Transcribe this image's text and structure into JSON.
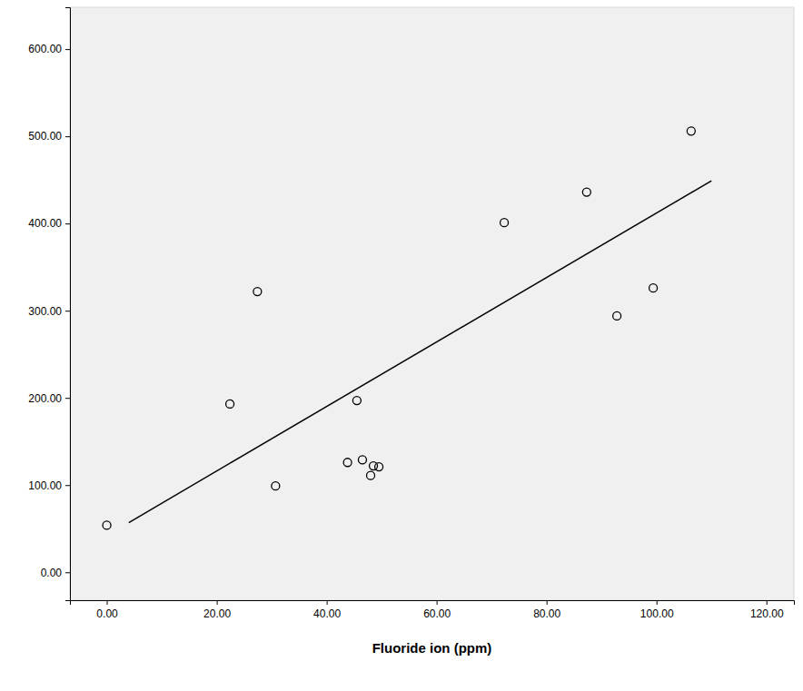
{
  "chart_data": {
    "type": "scatter",
    "x_label": "Fluoride ion (ppm)",
    "series": [
      {
        "type": "scatter",
        "marker": "circle",
        "color": "#000000",
        "x": [
          0,
          22.4,
          27.4,
          30.7,
          43.8,
          45.5,
          46.5,
          48.0,
          48.5,
          49.5,
          72.3,
          87.3,
          92.8,
          99.4,
          106.3
        ],
        "values": [
          54,
          193,
          322,
          99,
          126,
          197,
          129,
          111,
          122,
          121,
          401,
          436,
          294,
          326,
          506
        ]
      },
      {
        "type": "line",
        "line_style": "solid",
        "color": "#000000",
        "x": [
          4,
          110
        ],
        "values": [
          57,
          449
        ]
      }
    ],
    "xlim": [
      -6.7,
      125
    ],
    "ylim": [
      -32,
      648
    ],
    "xticks": [
      {
        "value": 0,
        "label": "0.00"
      },
      {
        "value": 20,
        "label": "20.00"
      },
      {
        "value": 40,
        "label": "40.00"
      },
      {
        "value": 60,
        "label": "60.00"
      },
      {
        "value": 80,
        "label": "80.00"
      },
      {
        "value": 100,
        "label": "100.00"
      },
      {
        "value": 120,
        "label": "120.00"
      }
    ],
    "yticks": [
      {
        "value": 0,
        "label": "0.00"
      },
      {
        "value": 100,
        "label": "100.00"
      },
      {
        "value": 200,
        "label": "200.00"
      },
      {
        "value": 300,
        "label": "300.00"
      },
      {
        "value": 400,
        "label": "400.00"
      },
      {
        "value": 500,
        "label": "500.00"
      },
      {
        "value": 600,
        "label": "600.00"
      }
    ],
    "grid": false
  }
}
